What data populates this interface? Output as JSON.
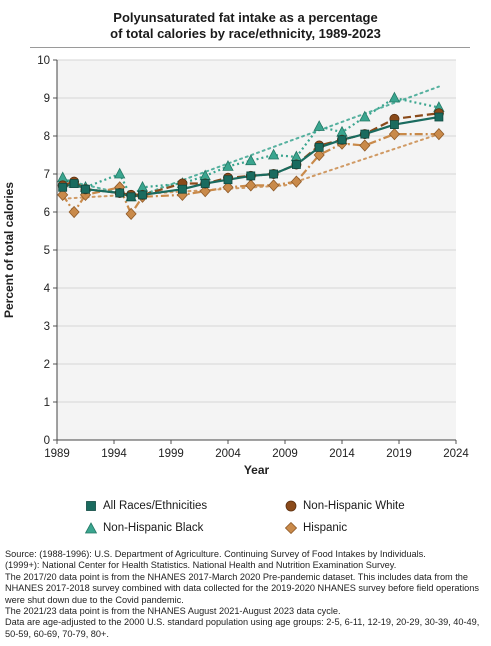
{
  "title_line1": "Polyunsaturated fat intake as a percentage",
  "title_line2": "of total calories by race/ethnicity, 1989-2023",
  "chart_data": {
    "type": "line",
    "xlabel": "Year",
    "ylabel": "Percent of total calories",
    "xlim": [
      1989,
      2024
    ],
    "ylim": [
      0,
      10
    ],
    "x_ticks": [
      1989,
      1994,
      1999,
      2004,
      2009,
      2014,
      2019,
      2024
    ],
    "y_ticks": [
      0,
      1,
      2,
      3,
      4,
      5,
      6,
      7,
      8,
      9,
      10
    ],
    "grid": "horizontal",
    "legend_position": "bottom",
    "series": [
      {
        "name": "All Races/Ethnicities",
        "color": "#1a6b5f",
        "marker": "square",
        "line_style": "solid",
        "x": [
          1989.5,
          1990.5,
          1991.5,
          1994.5,
          1995.5,
          1996.5,
          2000,
          2002,
          2004,
          2006,
          2008,
          2010,
          2012,
          2014,
          2016,
          2018.6,
          2022.5
        ],
        "values": [
          6.65,
          6.75,
          6.6,
          6.5,
          6.4,
          6.45,
          6.6,
          6.75,
          6.85,
          6.95,
          7.0,
          7.25,
          7.7,
          7.9,
          8.05,
          8.3,
          8.5
        ]
      },
      {
        "name": "Non-Hispanic White",
        "color": "#8a4a1a",
        "marker": "circle",
        "line_style": "dashed",
        "x": [
          1989.5,
          1990.5,
          1991.5,
          1994.5,
          1995.5,
          1996.5,
          2000,
          2002,
          2004,
          2006,
          2008,
          2010,
          2012,
          2014,
          2016,
          2018.6,
          2022.5
        ],
        "values": [
          6.7,
          6.8,
          6.6,
          6.5,
          6.45,
          6.45,
          6.75,
          6.75,
          6.9,
          6.95,
          7.0,
          7.25,
          7.75,
          7.9,
          8.05,
          8.45,
          8.6
        ]
      },
      {
        "name": "Non-Hispanic Black",
        "color": "#3aa58f",
        "marker": "triangle",
        "line_style": "dotted",
        "x": [
          1989.5,
          1990.5,
          1991.5,
          1994.5,
          1995.5,
          1996.5,
          2000,
          2002,
          2004,
          2006,
          2008,
          2010,
          2012,
          2014,
          2016,
          2018.6,
          2022.5
        ],
        "values": [
          6.9,
          6.75,
          6.65,
          7.0,
          6.4,
          6.65,
          6.75,
          6.95,
          7.2,
          7.35,
          7.5,
          7.45,
          8.25,
          8.1,
          8.5,
          9.0,
          8.75
        ]
      },
      {
        "name": "Hispanic",
        "color": "#c98a4a",
        "marker": "diamond",
        "line_style": "dashdot",
        "x": [
          1989.5,
          1990.5,
          1991.5,
          1994.5,
          1995.5,
          1996.5,
          2000,
          2002,
          2004,
          2006,
          2008,
          2010,
          2012,
          2014,
          2016,
          2018.6,
          2022.5
        ],
        "values": [
          6.45,
          6.0,
          6.45,
          6.65,
          5.95,
          6.4,
          6.45,
          6.55,
          6.65,
          6.7,
          6.7,
          6.8,
          7.5,
          7.8,
          7.75,
          8.05,
          8.05
        ]
      }
    ],
    "trend_lines": [
      {
        "series": "Non-Hispanic Black",
        "x": [
          1989.5,
          1996,
          2022.5
        ],
        "values": [
          6.85,
          6.4,
          9.3
        ]
      },
      {
        "series": "Hispanic",
        "x": [
          1989.5,
          2009,
          2022.5
        ],
        "values": [
          6.35,
          6.7,
          8.05
        ]
      }
    ]
  },
  "source": {
    "line1": "Source: (1988-1996): U.S. Department of Agriculture. Continuing Survey of Food Intakes by Individuals.",
    "line2": "(1999+): National Center for Health Statistics. National Health and Nutrition Examination Survey.",
    "line3": "The 2017/20 data point is from the NHANES 2017-March 2020 Pre-pandemic dataset. This includes data from the NHANES 2017-2018 survey combined with data collected for the 2019-2020 NHANES survey before field operations were shut down due to the Covid pandemic.",
    "line4": "The 2021/23 data point is from the NHANES August 2021-August 2023 data cycle.",
    "line5": "Data are age-adjusted to the 2000 U.S. standard population using age groups: 2-5, 6-11, 12-19, 20-29, 30-39, 40-49, 50-59, 60-69, 70-79, 80+."
  }
}
